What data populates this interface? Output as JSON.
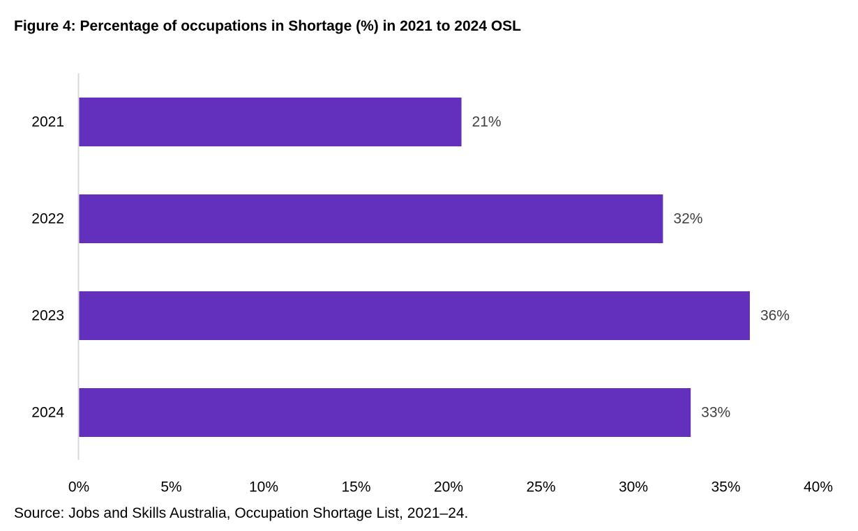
{
  "title": "Figure 4: Percentage of occupations in Shortage (%) in 2021 to 2024 OSL",
  "source": "Source: Jobs and Skills Australia, Occupation Shortage List, 2021–24.",
  "colors": {
    "bar": "#6230bd",
    "axis": "#d9d9d9",
    "value_label": "#404040"
  },
  "chart_data": {
    "type": "bar",
    "orientation": "horizontal",
    "categories": [
      "2021",
      "2022",
      "2023",
      "2024"
    ],
    "values": [
      20.7,
      31.6,
      36.3,
      33.1
    ],
    "data_labels": [
      "21%",
      "32%",
      "36%",
      "33%"
    ],
    "xlim": [
      0,
      40
    ],
    "x_ticks": [
      0,
      5,
      10,
      15,
      20,
      25,
      30,
      35,
      40
    ],
    "x_tick_labels": [
      "0%",
      "5%",
      "10%",
      "15%",
      "20%",
      "25%",
      "30%",
      "35%",
      "40%"
    ],
    "grid": false,
    "legend": "none"
  }
}
